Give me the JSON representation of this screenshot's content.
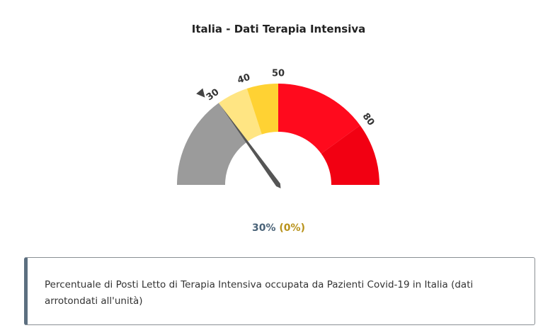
{
  "title": "Italia - Dati Terapia Intensiva",
  "chart_data": {
    "type": "gauge",
    "min": 0,
    "max": 100,
    "value": 30,
    "previous_value": 30,
    "bands": [
      {
        "from": 0,
        "to": 30,
        "color": "#9b9b9b"
      },
      {
        "from": 30,
        "to": 40,
        "color": "#ffe583"
      },
      {
        "from": 40,
        "to": 50,
        "color": "#ffd233"
      },
      {
        "from": 50,
        "to": 80,
        "color": "#ff0a1d"
      },
      {
        "from": 80,
        "to": 100,
        "color": "#f20012"
      }
    ],
    "tick_labels": [
      {
        "value": 30,
        "label": "30"
      },
      {
        "value": 40,
        "label": "40"
      },
      {
        "value": 50,
        "label": "50"
      },
      {
        "value": 80,
        "label": "80"
      }
    ],
    "current_text": "30%",
    "change_text": "(0%)"
  },
  "note": "Percentuale di Posti Letto di Terapia Intensiva occupata da Pazienti Covid-19 in Italia (dati arrotondati all'unità)",
  "colors": {
    "needle": "#555555",
    "marker": "#444444",
    "current": "#4a6378",
    "change": "#b8921a"
  }
}
